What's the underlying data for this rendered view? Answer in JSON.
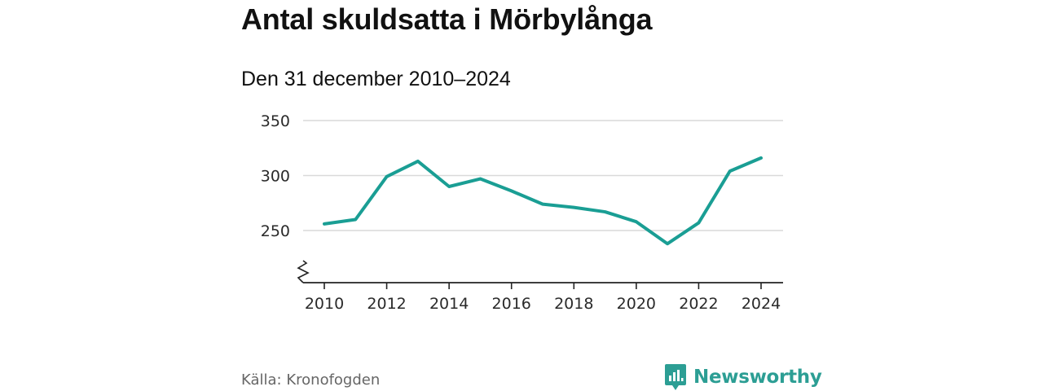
{
  "header": {
    "title": "Antal skuldsatta i Mörbylånga",
    "subtitle": "Den 31 december 2010–2024"
  },
  "footer": {
    "source": "Källa: Kronofogden",
    "brand": "Newsworthy"
  },
  "colors": {
    "line": "#1a9e94",
    "grid": "#d9d9d9",
    "axis": "#222222",
    "brand": "#2c9e94"
  },
  "chart_data": {
    "type": "line",
    "title": "Antal skuldsatta i Mörbylånga",
    "subtitle": "Den 31 december 2010–2024",
    "x": [
      2010,
      2011,
      2012,
      2013,
      2014,
      2015,
      2016,
      2017,
      2018,
      2019,
      2020,
      2021,
      2022,
      2023,
      2024
    ],
    "series": [
      {
        "values": [
          256,
          260,
          299,
          313,
          290,
          297,
          286,
          274,
          271,
          267,
          258,
          238,
          257,
          304,
          316
        ]
      }
    ],
    "xticks": [
      2010,
      2012,
      2014,
      2016,
      2018,
      2020,
      2022,
      2024
    ],
    "yticks": [
      250,
      300,
      350
    ],
    "ylim": [
      203,
      350
    ],
    "xlim": [
      2010,
      2024
    ],
    "grid": "horizontal",
    "axis_break": true
  }
}
